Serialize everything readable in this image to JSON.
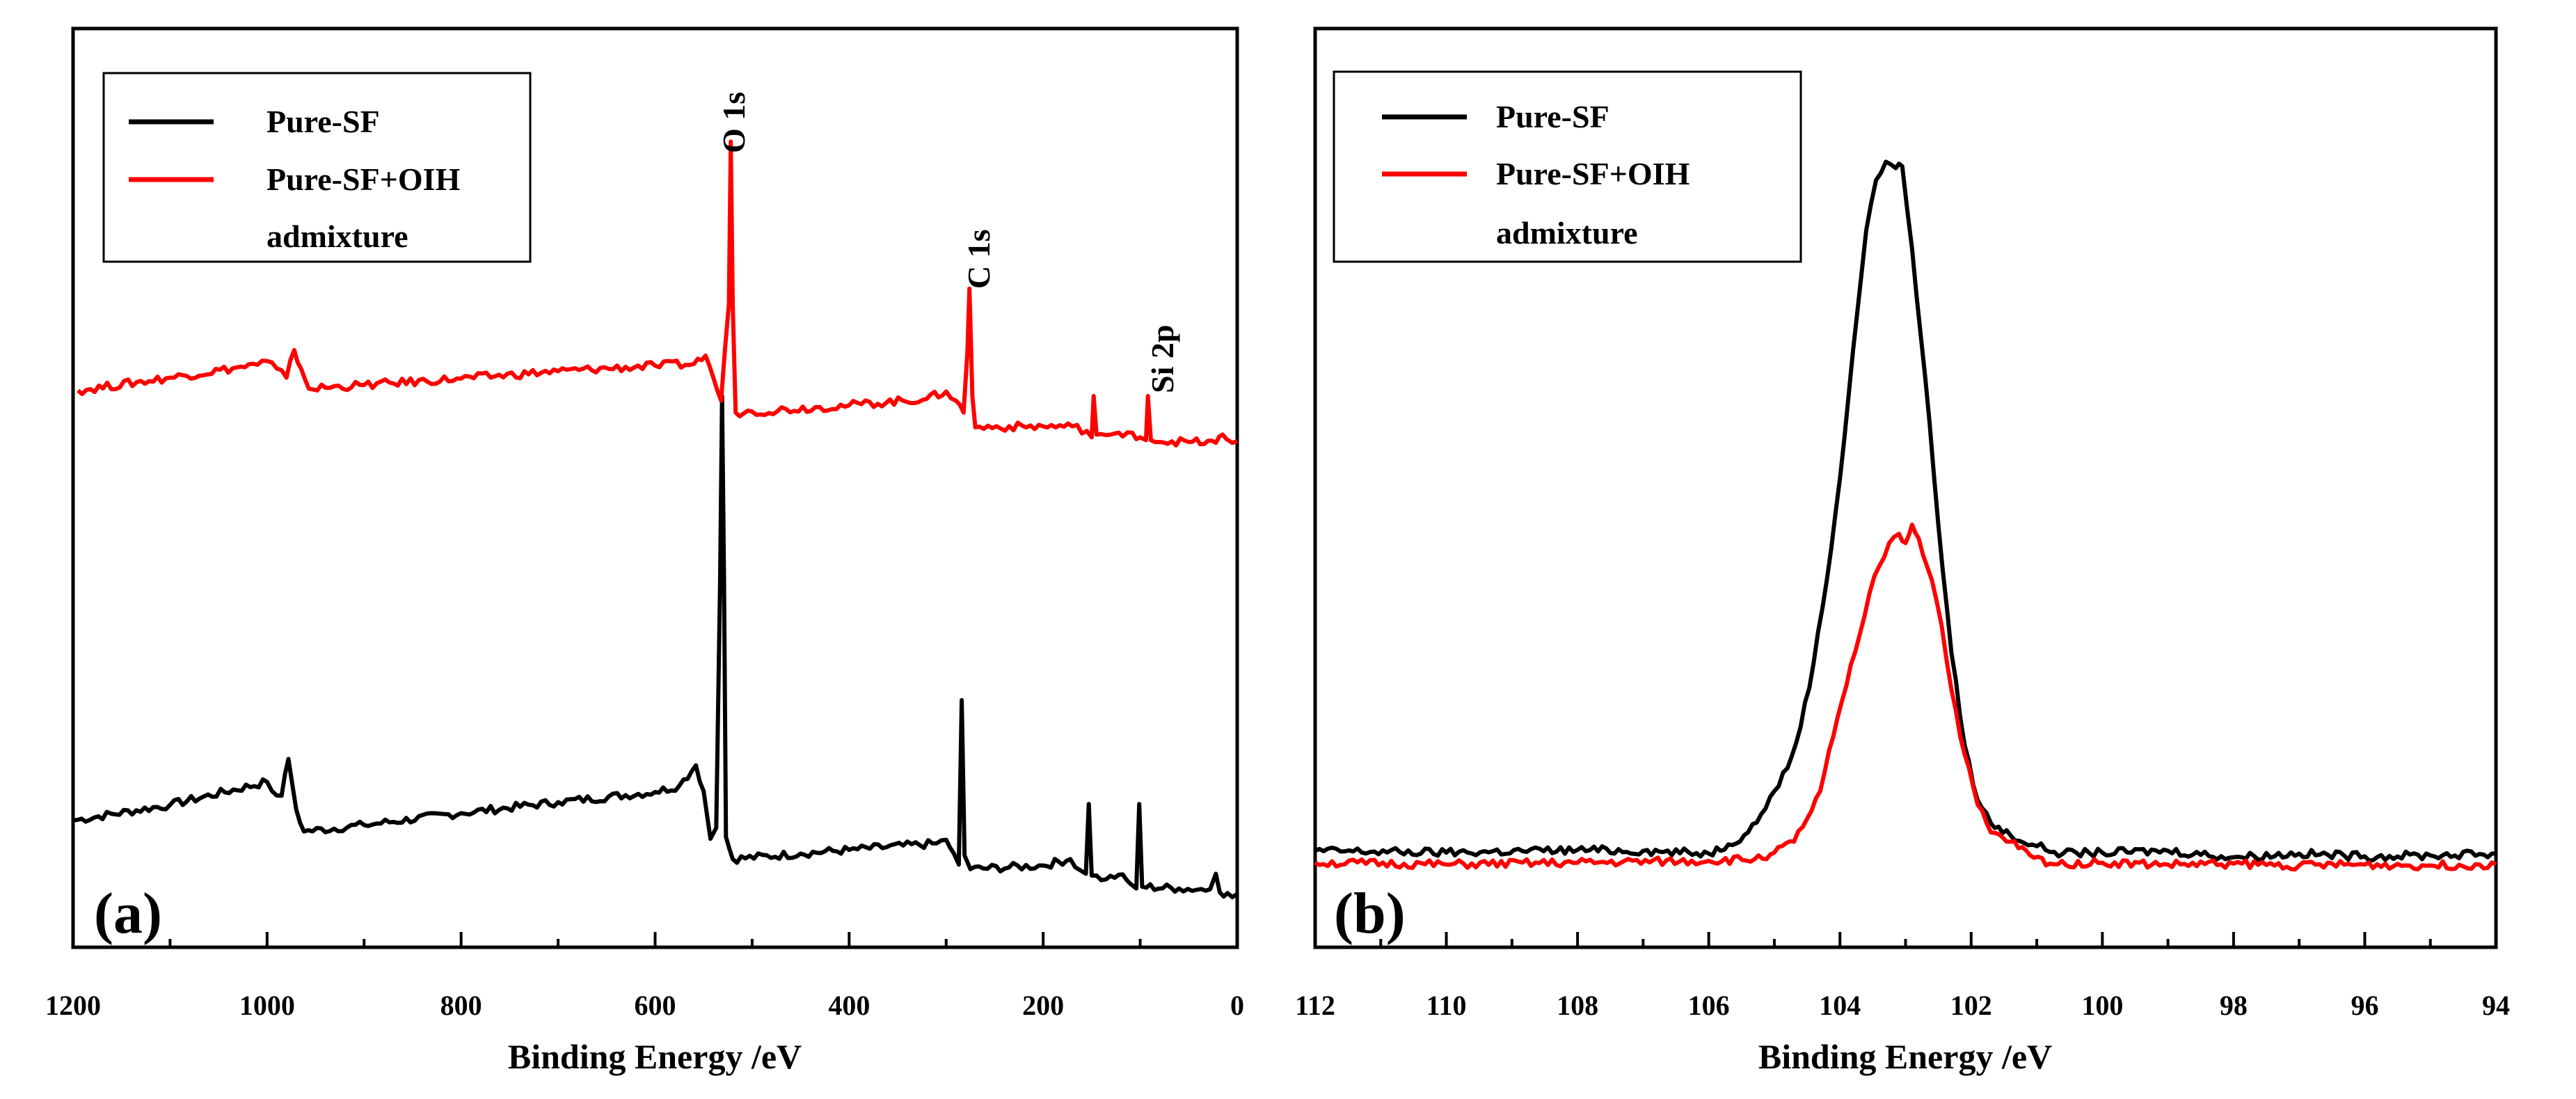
{
  "colors": {
    "pure_sf": "#000000",
    "pure_sf_oih": "#ff0000",
    "axes": "#000000"
  },
  "chart_data": [
    {
      "type": "line",
      "panel_label": "(a)",
      "xlabel": "Binding Energy /eV",
      "ylabel": "",
      "xlim": [
        1200,
        0
      ],
      "x_reversed": true,
      "ylim": [
        0,
        100
      ],
      "y_ticks_shown": false,
      "x_ticks": [
        "1200",
        "1000",
        "800",
        "600",
        "400",
        "200",
        "0"
      ],
      "grid": false,
      "legend_position": "top-left",
      "legend": [
        "Pure-SF",
        "Pure-SF+OIH",
        "admixture"
      ],
      "annotations": [
        {
          "text": "O 1s",
          "x": 522
        },
        {
          "text": "C 1s",
          "x": 276
        },
        {
          "text": "Si 2p",
          "x": 92
        }
      ],
      "series": [
        {
          "name": "Pure-SF",
          "color": "#000000",
          "points": [
            [
              1200,
              13.8
            ],
            [
              1100,
              15.5
            ],
            [
              1000,
              18
            ],
            [
              995,
              17
            ],
            [
              985,
              16.5
            ],
            [
              978,
              20.5
            ],
            [
              970,
              15
            ],
            [
              962,
              12.6
            ],
            [
              900,
              13.3
            ],
            [
              800,
              14.6
            ],
            [
              700,
              15.8
            ],
            [
              600,
              16.9
            ],
            [
              575,
              17.6
            ],
            [
              558,
              19.8
            ],
            [
              550,
              17
            ],
            [
              543,
              11.8
            ],
            [
              537,
              13
            ],
            [
              533,
              40
            ],
            [
              531,
              60
            ],
            [
              529,
              40
            ],
            [
              527,
              12
            ],
            [
              520,
              9.6
            ],
            [
              450,
              10.2
            ],
            [
              400,
              10.6
            ],
            [
              310,
              11.3
            ],
            [
              300,
              11.7
            ],
            [
              292,
              10.2
            ],
            [
              287,
              9
            ],
            [
              284,
              26.9
            ],
            [
              281,
              10
            ],
            [
              275,
              8.5
            ],
            [
              200,
              8.9
            ],
            [
              172,
              9.6
            ],
            [
              162,
              8.4
            ],
            [
              156,
              8
            ],
            [
              153,
              15.6
            ],
            [
              150,
              7.8
            ],
            [
              135,
              7.4
            ],
            [
              122,
              7.9
            ],
            [
              110,
              6.9
            ],
            [
              104,
              6.4
            ],
            [
              101,
              15.6
            ],
            [
              98,
              6.6
            ],
            [
              60,
              6.4
            ],
            [
              28,
              6.3
            ],
            [
              22,
              8
            ],
            [
              18,
              6
            ],
            [
              10,
              5.9
            ],
            [
              0,
              5.8
            ]
          ]
        },
        {
          "name": "Pure-SF+OIH admixture",
          "color": "#ff0000",
          "points": [
            [
              1195,
              60.6
            ],
            [
              1100,
              62
            ],
            [
              1010,
              63.4
            ],
            [
              1000,
              63.8
            ],
            [
              990,
              63
            ],
            [
              980,
              62
            ],
            [
              972,
              65
            ],
            [
              965,
              63
            ],
            [
              957,
              60.8
            ],
            [
              900,
              61.2
            ],
            [
              800,
              61.9
            ],
            [
              700,
              62.7
            ],
            [
              600,
              63.3
            ],
            [
              560,
              63.5
            ],
            [
              548,
              64.4
            ],
            [
              540,
              62
            ],
            [
              532,
              59.5
            ],
            [
              524,
              70
            ],
            [
              522,
              87.7
            ],
            [
              520,
              70
            ],
            [
              517,
              58.2
            ],
            [
              500,
              58.3
            ],
            [
              400,
              59
            ],
            [
              320,
              59.7
            ],
            [
              300,
              60.5
            ],
            [
              290,
              59.5
            ],
            [
              282,
              58.2
            ],
            [
              278,
              65
            ],
            [
              276,
              71.7
            ],
            [
              273,
              60
            ],
            [
              270,
              56.6
            ],
            [
              200,
              56.7
            ],
            [
              170,
              56.7
            ],
            [
              155,
              56.2
            ],
            [
              150,
              55.5
            ],
            [
              148,
              60
            ],
            [
              145,
              55.8
            ],
            [
              130,
              55.8
            ],
            [
              118,
              55.6
            ],
            [
              108,
              56
            ],
            [
              100,
              55.5
            ],
            [
              94,
              55.2
            ],
            [
              92,
              60
            ],
            [
              89,
              55.2
            ],
            [
              50,
              55
            ],
            [
              22,
              54.9
            ],
            [
              15,
              55.8
            ],
            [
              11,
              55.3
            ],
            [
              5,
              54.9
            ],
            [
              0,
              55.1
            ]
          ]
        }
      ]
    },
    {
      "type": "line",
      "panel_label": "(b)",
      "xlabel": "Binding Energy /eV",
      "ylabel": "",
      "xlim": [
        112,
        94
      ],
      "x_reversed": true,
      "ylim": [
        0,
        100
      ],
      "y_ticks_shown": false,
      "x_ticks": [
        "112",
        "110",
        "108",
        "106",
        "104",
        "102",
        "100",
        "98",
        "96",
        "94"
      ],
      "grid": false,
      "legend_position": "top-left",
      "legend": [
        "Pure-SF",
        "Pure-SF+OIH",
        "admixture"
      ],
      "series": [
        {
          "name": "Pure-SF",
          "color": "#000000",
          "points": [
            [
              112,
              10.5
            ],
            [
              110,
              10.3
            ],
            [
              108,
              10.6
            ],
            [
              107,
              10.5
            ],
            [
              106,
              10.2
            ],
            [
              105.7,
              11.2
            ],
            [
              105.4,
              12.5
            ],
            [
              105.2,
              14.5
            ],
            [
              105,
              17
            ],
            [
              104.8,
              19.5
            ],
            [
              104.6,
              24
            ],
            [
              104.4,
              31
            ],
            [
              104.2,
              40
            ],
            [
              104,
              51
            ],
            [
              103.8,
              65
            ],
            [
              103.6,
              78
            ],
            [
              103.45,
              83.5
            ],
            [
              103.3,
              85.5
            ],
            [
              103.15,
              84.8
            ],
            [
              103.05,
              85
            ],
            [
              102.9,
              76
            ],
            [
              102.7,
              62
            ],
            [
              102.5,
              46
            ],
            [
              102.3,
              32
            ],
            [
              102.1,
              22
            ],
            [
              101.9,
              16
            ],
            [
              101.7,
              13.5
            ],
            [
              101.4,
              12.2
            ],
            [
              101,
              11
            ],
            [
              100.6,
              10.2
            ],
            [
              100,
              10.3
            ],
            [
              99,
              10.5
            ],
            [
              98,
              9.8
            ],
            [
              97,
              10.2
            ],
            [
              96,
              9.9
            ],
            [
              95,
              10
            ],
            [
              94,
              10.2
            ]
          ]
        },
        {
          "name": "Pure-SF+OIH admixture",
          "color": "#ff0000",
          "points": [
            [
              112,
              9.2
            ],
            [
              110,
              9
            ],
            [
              108,
              9.2
            ],
            [
              106,
              9.4
            ],
            [
              105.3,
              9.6
            ],
            [
              105,
              10.3
            ],
            [
              104.7,
              11.5
            ],
            [
              104.5,
              14
            ],
            [
              104.3,
              17
            ],
            [
              104.1,
              23
            ],
            [
              103.9,
              28.5
            ],
            [
              103.7,
              34
            ],
            [
              103.55,
              38.5
            ],
            [
              103.4,
              41.5
            ],
            [
              103.25,
              44
            ],
            [
              103.1,
              45
            ],
            [
              103,
              44
            ],
            [
              102.9,
              46
            ],
            [
              102.8,
              44.5
            ],
            [
              102.6,
              40
            ],
            [
              102.45,
              35
            ],
            [
              102.3,
              28
            ],
            [
              102.1,
              21
            ],
            [
              101.9,
              15.5
            ],
            [
              101.7,
              12.5
            ],
            [
              101.4,
              11.5
            ],
            [
              101.1,
              10
            ],
            [
              100.8,
              9.1
            ],
            [
              100,
              9.2
            ],
            [
              99,
              9
            ],
            [
              98,
              9.1
            ],
            [
              97,
              8.9
            ],
            [
              96,
              9
            ],
            [
              95,
              8.9
            ],
            [
              94,
              9
            ]
          ]
        }
      ]
    }
  ]
}
